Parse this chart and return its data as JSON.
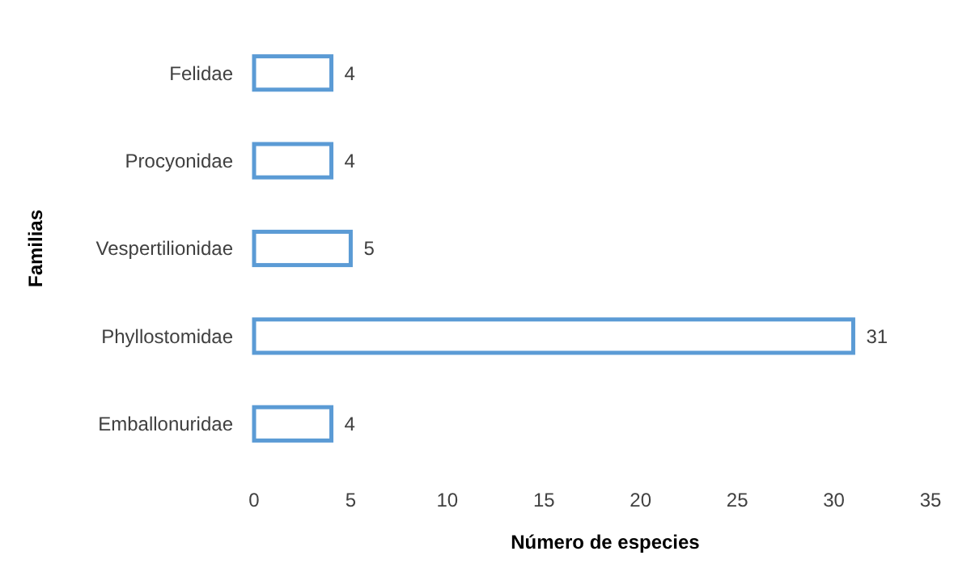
{
  "chart_data": {
    "type": "bar",
    "orientation": "horizontal",
    "xlabel": "Número de especies",
    "ylabel": "Familias",
    "categories": [
      "Felidae",
      "Procyonidae",
      "Vespertilionidae",
      "Phyllostomidae",
      "Emballonuridae"
    ],
    "values": [
      4,
      4,
      5,
      31,
      4
    ],
    "color": "#5b9bd5",
    "data_labels": true,
    "xlim": [
      0,
      35
    ],
    "xticks": [
      0,
      5,
      10,
      15,
      20,
      25,
      30,
      35
    ]
  }
}
